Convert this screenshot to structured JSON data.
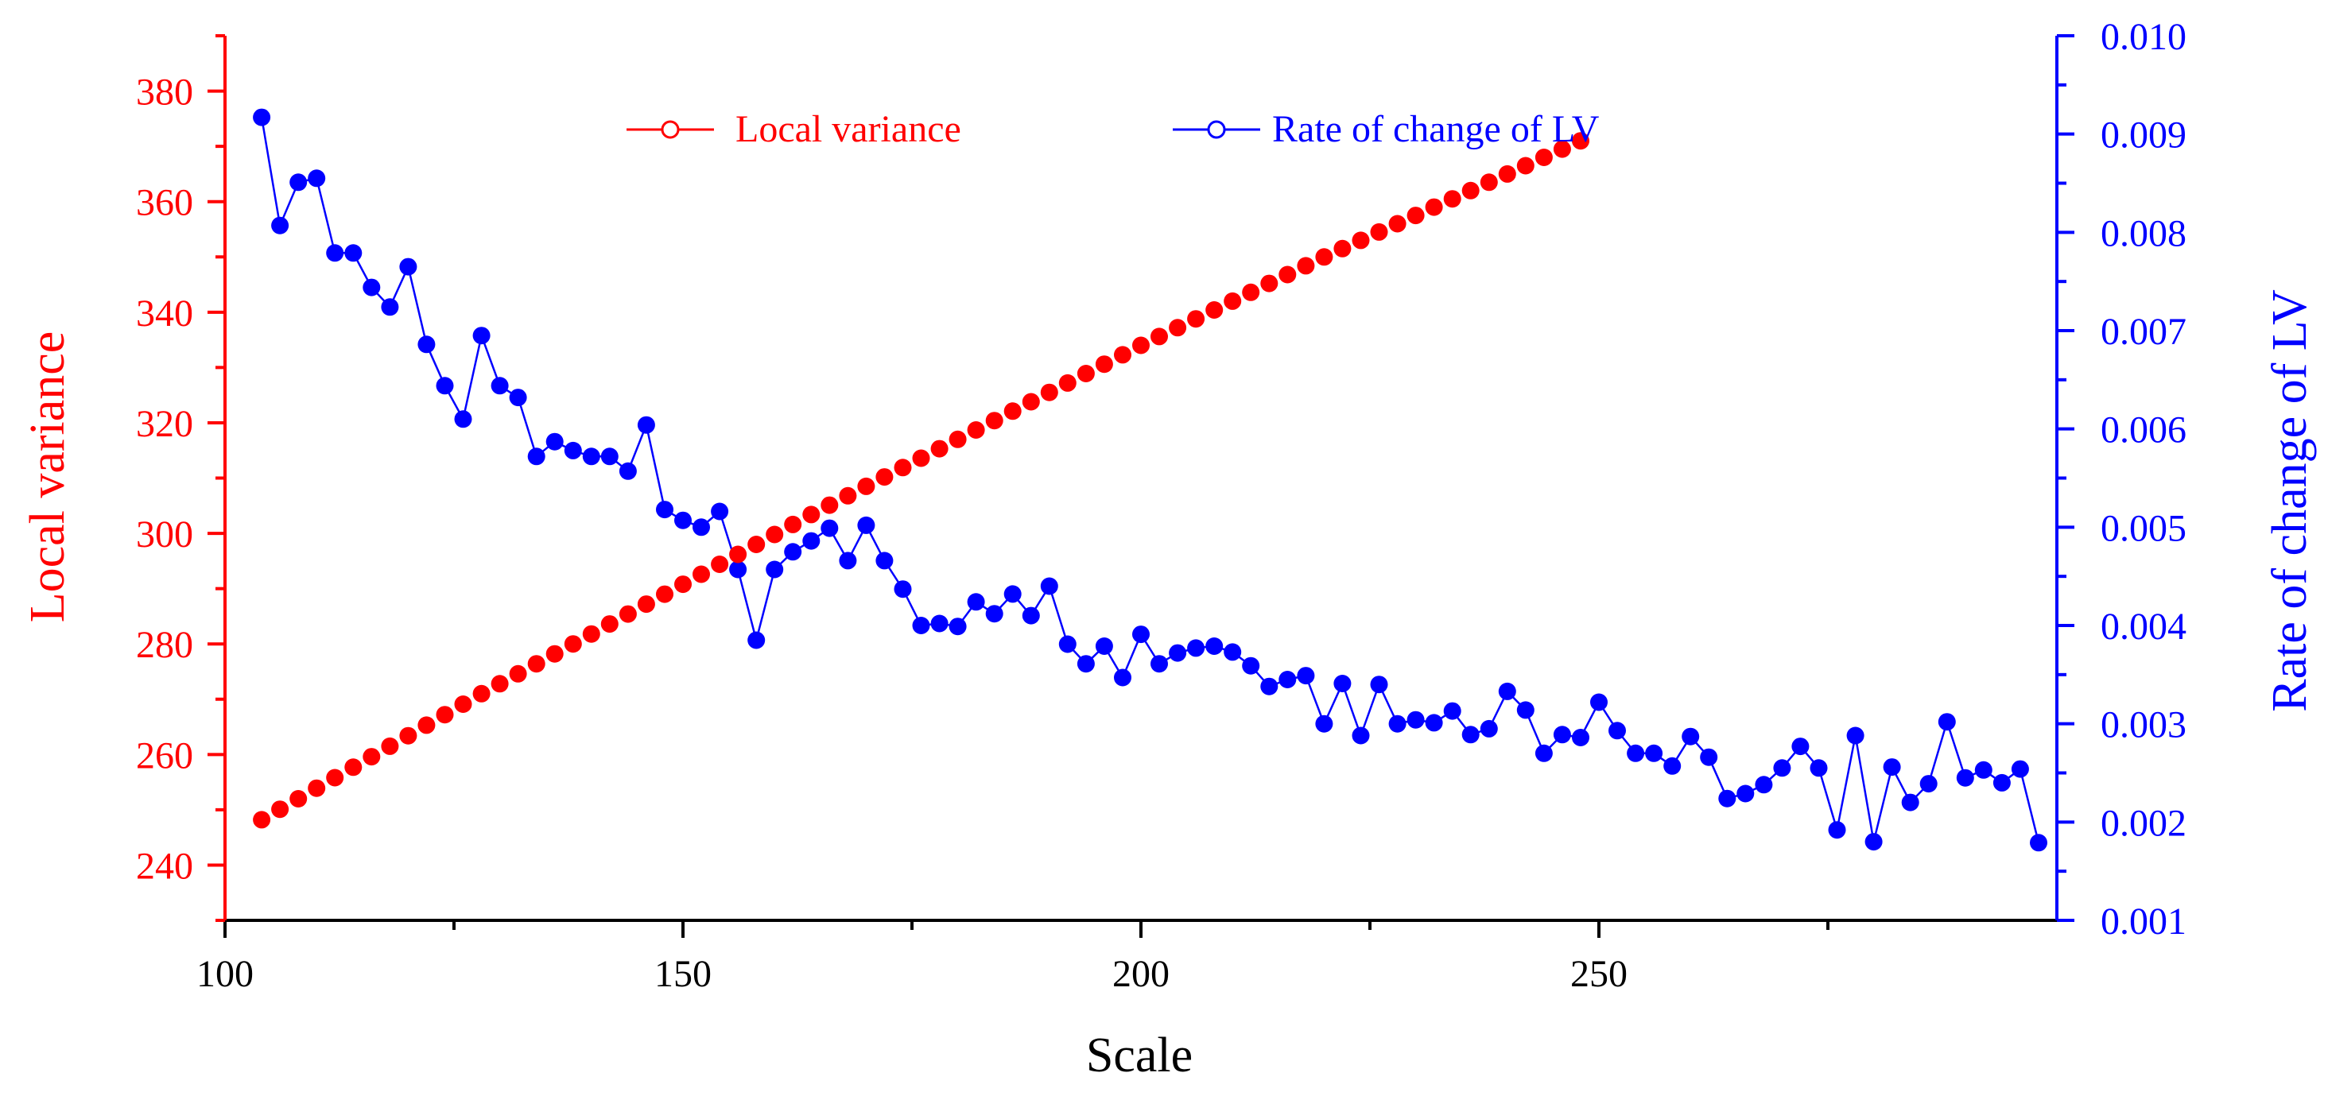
{
  "colors": {
    "left_series": "#ff0000",
    "right_series": "#0000ff",
    "frame": "#000000"
  },
  "chart_data": {
    "type": "line",
    "xlabel": "Scale",
    "xlim": [
      100,
      300
    ],
    "x_ticks": [
      100,
      150,
      200,
      250
    ],
    "y_left": {
      "label": "Local variance",
      "lim": [
        230,
        390
      ],
      "ticks": [
        240,
        260,
        280,
        300,
        320,
        340,
        360,
        380
      ],
      "minor_step": 10
    },
    "y_right": {
      "label": "Rate of change of LV",
      "lim": [
        0.001,
        0.01
      ],
      "ticks": [
        "0.001",
        "0.002",
        "0.003",
        "0.004",
        "0.005",
        "0.006",
        "0.007",
        "0.008",
        "0.009",
        "0.010"
      ],
      "minor_step": 0.0005
    },
    "legend": {
      "placement": "top",
      "entries": [
        "Local variance",
        "Rate of change of LV"
      ]
    },
    "series": [
      {
        "name": "Local variance",
        "axis": "left",
        "x_start": 104,
        "x_step": 2,
        "values": [
          248.2,
          250.1,
          252.0,
          253.9,
          255.8,
          257.7,
          259.6,
          261.5,
          263.4,
          265.3,
          267.2,
          269.1,
          271.0,
          272.8,
          274.6,
          276.4,
          278.2,
          280.0,
          281.8,
          283.6,
          285.4,
          287.2,
          289.0,
          290.8,
          292.6,
          294.4,
          296.2,
          298.0,
          299.8,
          301.6,
          303.4,
          305.1,
          306.8,
          308.5,
          310.2,
          311.9,
          313.6,
          315.3,
          317.0,
          318.7,
          320.4,
          322.1,
          323.8,
          325.5,
          327.2,
          328.9,
          330.6,
          332.3,
          334.0,
          335.6,
          337.2,
          338.8,
          340.4,
          342.0,
          343.6,
          345.2,
          346.8,
          348.4,
          350.0,
          351.5,
          353.0,
          354.5,
          356.0,
          357.5,
          359.0,
          360.5,
          362.0,
          363.5,
          365.0,
          366.5,
          368.0,
          369.5,
          371.0
        ]
      },
      {
        "name": "Rate of change of LV",
        "axis": "right",
        "x_start": 104,
        "x_step": 2,
        "values": [
          0.00917,
          0.00807,
          0.00851,
          0.00855,
          0.00779,
          0.00779,
          0.00744,
          0.00724,
          0.00765,
          0.00686,
          0.00644,
          0.0061,
          0.00695,
          0.00644,
          0.00632,
          0.00572,
          0.00587,
          0.00578,
          0.00572,
          0.00572,
          0.00557,
          0.00604,
          0.00518,
          0.00507,
          0.005,
          0.00516,
          0.00457,
          0.00385,
          0.00457,
          0.00475,
          0.00486,
          0.00499,
          0.00466,
          0.00502,
          0.00466,
          0.00437,
          0.004,
          0.00402,
          0.00399,
          0.00424,
          0.00412,
          0.00432,
          0.0041,
          0.0044,
          0.00381,
          0.00361,
          0.00379,
          0.00347,
          0.00391,
          0.00361,
          0.00372,
          0.00377,
          0.00379,
          0.00373,
          0.00359,
          0.00338,
          0.00345,
          0.00349,
          0.003,
          0.00341,
          0.00288,
          0.0034,
          0.003,
          0.00304,
          0.00301,
          0.00313,
          0.00289,
          0.00295,
          0.00333,
          0.00314,
          0.0027,
          0.00289,
          0.00286,
          0.00322,
          0.00293,
          0.0027,
          0.0027,
          0.00257,
          0.00287,
          0.00266,
          0.00224,
          0.00229,
          0.00238,
          0.00255,
          0.00277,
          0.00255,
          0.00192,
          0.00288,
          0.0018,
          0.00256,
          0.0022,
          0.00239,
          0.00302,
          0.00245,
          0.00253,
          0.0024,
          0.00254,
          0.00179
        ]
      }
    ]
  }
}
